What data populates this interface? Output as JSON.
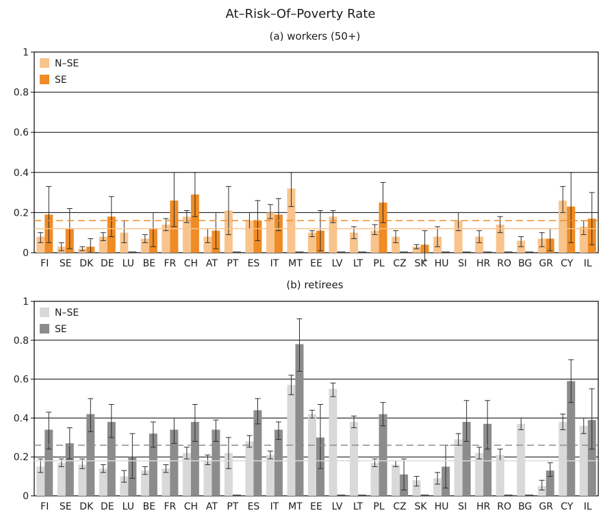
{
  "title": "At–Risk–Of–Poverty Rate",
  "chart_data": [
    {
      "type": "bar",
      "subtitle": "(a) workers (50+)",
      "ylim": [
        0,
        1
      ],
      "yticks": [
        "0",
        "0.2",
        "0.4",
        "0.6",
        "0.8",
        "1"
      ],
      "legend_position": "top-left",
      "colors": {
        "N-SE": "#f9c48c",
        "SE": "#ef8c26",
        "error": "#2a2a2a"
      },
      "categories": [
        "FI",
        "SE",
        "DK",
        "DE",
        "LU",
        "BE",
        "FR",
        "CH",
        "AT",
        "PT",
        "ES",
        "IT",
        "MT",
        "EE",
        "LV",
        "LT",
        "PL",
        "CZ",
        "SK",
        "HU",
        "SI",
        "HR",
        "RO",
        "BG",
        "GR",
        "CY",
        "IL"
      ],
      "series": [
        {
          "name": "N–SE",
          "values": [
            0.08,
            0.03,
            0.02,
            0.08,
            0.1,
            0.07,
            0.14,
            0.18,
            0.08,
            0.21,
            0.16,
            0.2,
            0.32,
            0.1,
            0.18,
            0.1,
            0.11,
            0.08,
            0.03,
            0.08,
            0.16,
            0.08,
            0.14,
            0.06,
            0.07,
            0.26,
            0.13
          ],
          "err_low": [
            0.05,
            0.01,
            0.01,
            0.06,
            0.05,
            0.05,
            0.11,
            0.15,
            0.05,
            0.09,
            0.12,
            0.17,
            0.23,
            0.08,
            0.15,
            0.07,
            0.09,
            0.05,
            0.02,
            0.03,
            0.11,
            0.05,
            0.1,
            0.03,
            0.03,
            0.2,
            0.09
          ],
          "err_high": [
            0.1,
            0.05,
            0.03,
            0.1,
            0.16,
            0.09,
            0.17,
            0.21,
            0.12,
            0.33,
            0.2,
            0.24,
            0.4,
            0.11,
            0.21,
            0.13,
            0.14,
            0.11,
            0.04,
            0.13,
            0.2,
            0.11,
            0.18,
            0.08,
            0.1,
            0.33,
            0.16
          ]
        },
        {
          "name": "SE",
          "values": [
            0.19,
            0.12,
            0.03,
            0.18,
            0,
            0.12,
            0.26,
            0.29,
            0.11,
            0,
            0.16,
            0.19,
            0,
            0.11,
            0,
            0,
            0.25,
            0,
            0.04,
            0,
            0,
            0,
            0,
            0,
            0.07,
            0.23,
            0.17
          ],
          "err_low": [
            0.05,
            0.02,
            0,
            0.08,
            null,
            0.03,
            0.13,
            0.18,
            0.02,
            null,
            0.06,
            0.11,
            null,
            0.01,
            null,
            null,
            0.15,
            null,
            -0.04,
            null,
            null,
            null,
            null,
            null,
            0.01,
            0.05,
            0.04
          ],
          "err_high": [
            0.33,
            0.22,
            0.07,
            0.28,
            null,
            0.2,
            0.4,
            0.4,
            0.2,
            null,
            0.26,
            0.27,
            null,
            0.21,
            null,
            null,
            0.35,
            null,
            0.11,
            null,
            null,
            null,
            null,
            null,
            0.12,
            0.4,
            0.3
          ]
        }
      ],
      "reference_lines": [
        {
          "series": "N–SE",
          "value": 0.12,
          "style": "solid"
        },
        {
          "series": "SE",
          "value": 0.16,
          "style": "dashed"
        }
      ]
    },
    {
      "type": "bar",
      "subtitle": "(b) retirees",
      "ylim": [
        0,
        1
      ],
      "yticks": [
        "0",
        "0.2",
        "0.4",
        "0.6",
        "0.8",
        "1"
      ],
      "legend_position": "top-left",
      "colors": {
        "N-SE": "#d9d9d9",
        "SE": "#8c8c8c",
        "error": "#2a2a2a"
      },
      "categories": [
        "FI",
        "SE",
        "DK",
        "DE",
        "LU",
        "BE",
        "FR",
        "CH",
        "AT",
        "PT",
        "ES",
        "IT",
        "MT",
        "EE",
        "LV",
        "LT",
        "PL",
        "CZ",
        "SK",
        "HU",
        "SI",
        "HR",
        "RO",
        "BG",
        "GR",
        "CY",
        "IL"
      ],
      "series": [
        {
          "name": "N–SE",
          "values": [
            0.15,
            0.17,
            0.16,
            0.14,
            0.1,
            0.13,
            0.14,
            0.22,
            0.18,
            0.22,
            0.28,
            0.21,
            0.57,
            0.42,
            0.55,
            0.38,
            0.17,
            0.16,
            0.08,
            0.09,
            0.29,
            0.22,
            0.21,
            0.37,
            0.05,
            0.38,
            0.36
          ],
          "err_low": [
            0.12,
            0.15,
            0.14,
            0.12,
            0.07,
            0.11,
            0.12,
            0.19,
            0.16,
            0.14,
            0.25,
            0.19,
            0.52,
            0.4,
            0.51,
            0.35,
            0.15,
            0.15,
            0.05,
            0.06,
            0.26,
            0.19,
            0.18,
            0.34,
            0.03,
            0.34,
            0.32
          ],
          "err_high": [
            0.19,
            0.19,
            0.19,
            0.16,
            0.13,
            0.15,
            0.16,
            0.25,
            0.21,
            0.3,
            0.31,
            0.23,
            0.62,
            0.44,
            0.58,
            0.41,
            0.19,
            0.18,
            0.1,
            0.12,
            0.32,
            0.25,
            0.24,
            0.4,
            0.08,
            0.42,
            0.4
          ]
        },
        {
          "name": "SE",
          "values": [
            0.34,
            0.27,
            0.42,
            0.38,
            0.2,
            0.32,
            0.34,
            0.38,
            0.34,
            0,
            0.44,
            0.34,
            0.78,
            0.3,
            0,
            0,
            0.42,
            0.11,
            0,
            0.15,
            0.38,
            0.37,
            0,
            0,
            0.13,
            0.59,
            0.39
          ],
          "err_low": [
            0.24,
            0.19,
            0.33,
            0.3,
            0.09,
            0.25,
            0.27,
            0.28,
            0.28,
            null,
            0.37,
            0.29,
            0.64,
            0.14,
            null,
            null,
            0.36,
            0.03,
            null,
            0.04,
            0.28,
            0.24,
            null,
            null,
            0.1,
            0.48,
            0.24
          ],
          "err_high": [
            0.43,
            0.35,
            0.5,
            0.47,
            0.32,
            0.38,
            0.4,
            0.47,
            0.39,
            null,
            0.5,
            0.38,
            0.91,
            0.47,
            null,
            null,
            0.48,
            0.19,
            null,
            0.26,
            0.49,
            0.49,
            null,
            null,
            0.17,
            0.7,
            0.55
          ]
        }
      ],
      "reference_lines": [
        {
          "series": "N–SE",
          "value": 0.18,
          "style": "solid"
        },
        {
          "series": "SE",
          "value": 0.26,
          "style": "dashed"
        }
      ]
    }
  ]
}
